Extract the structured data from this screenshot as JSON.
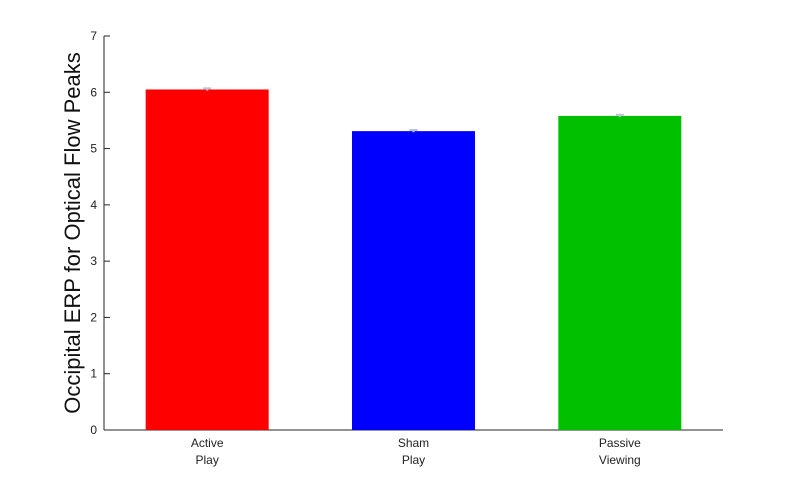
{
  "chart_data": {
    "type": "bar",
    "categories": [
      [
        "Active",
        "Play"
      ],
      [
        "Sham",
        "Play"
      ],
      [
        "Passive",
        "Viewing"
      ]
    ],
    "values": [
      6.05,
      5.31,
      5.58
    ],
    "error": [
      0.02,
      0.02,
      0.02
    ],
    "colors": [
      "#ff0000",
      "#0000ff",
      "#00c000"
    ],
    "title": "",
    "xlabel": "",
    "ylabel": "Occipital ERP for Optical Flow Peaks",
    "ylim": [
      0,
      7
    ],
    "yticks": [
      0,
      1,
      2,
      3,
      4,
      5,
      6,
      7
    ],
    "grid": false
  }
}
